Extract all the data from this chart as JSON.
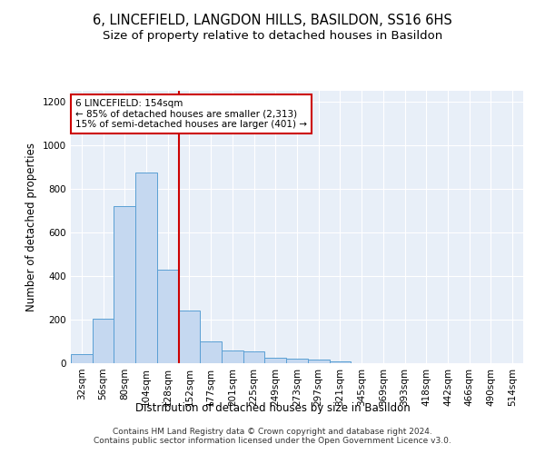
{
  "title": "6, LINCEFIELD, LANGDON HILLS, BASILDON, SS16 6HS",
  "subtitle": "Size of property relative to detached houses in Basildon",
  "xlabel": "Distribution of detached houses by size in Basildon",
  "ylabel": "Number of detached properties",
  "categories": [
    "32sqm",
    "56sqm",
    "80sqm",
    "104sqm",
    "128sqm",
    "152sqm",
    "177sqm",
    "201sqm",
    "225sqm",
    "249sqm",
    "273sqm",
    "297sqm",
    "321sqm",
    "345sqm",
    "369sqm",
    "393sqm",
    "418sqm",
    "442sqm",
    "466sqm",
    "490sqm",
    "514sqm"
  ],
  "values": [
    40,
    205,
    720,
    875,
    430,
    240,
    100,
    60,
    55,
    25,
    20,
    15,
    10,
    0,
    0,
    0,
    0,
    0,
    0,
    0,
    0
  ],
  "bar_color": "#c5d8f0",
  "bar_edge_color": "#5a9fd4",
  "vline_color": "#cc0000",
  "vline_pos": 4.5,
  "annotation_text": "6 LINCEFIELD: 154sqm\n← 85% of detached houses are smaller (2,313)\n15% of semi-detached houses are larger (401) →",
  "annotation_box_color": "white",
  "annotation_box_edge": "#cc0000",
  "ylim": [
    0,
    1250
  ],
  "yticks": [
    0,
    200,
    400,
    600,
    800,
    1000,
    1200
  ],
  "background_color": "#e8eff8",
  "footer": "Contains HM Land Registry data © Crown copyright and database right 2024.\nContains public sector information licensed under the Open Government Licence v3.0.",
  "title_fontsize": 10.5,
  "subtitle_fontsize": 9.5,
  "xlabel_fontsize": 8.5,
  "ylabel_fontsize": 8.5,
  "tick_fontsize": 7.5,
  "footer_fontsize": 6.5
}
